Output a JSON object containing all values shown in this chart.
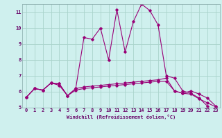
{
  "xlabel": "Windchill (Refroidissement éolien,°C)",
  "bg_color": "#cff0ee",
  "grid_color": "#aad4cc",
  "line_color": "#990077",
  "xlim": [
    -0.5,
    23.5
  ],
  "ylim": [
    5,
    11.5
  ],
  "yticks": [
    5,
    6,
    7,
    8,
    9,
    10,
    11
  ],
  "xticks": [
    0,
    1,
    2,
    3,
    4,
    5,
    6,
    7,
    8,
    9,
    10,
    11,
    12,
    13,
    14,
    15,
    16,
    17,
    18,
    19,
    20,
    21,
    22,
    23
  ],
  "line1_x": [
    0,
    1,
    2,
    3,
    4,
    5,
    6,
    7,
    8,
    9,
    10,
    11,
    12,
    13,
    14,
    15,
    16,
    17,
    18,
    19,
    20,
    21,
    22
  ],
  "line1_y": [
    5.65,
    6.2,
    6.1,
    6.55,
    6.5,
    5.75,
    6.2,
    9.4,
    9.3,
    10.0,
    8.0,
    11.15,
    8.5,
    10.4,
    11.5,
    11.1,
    10.2,
    7.0,
    6.85,
    6.05,
    5.9,
    5.6,
    5.1
  ],
  "line2_x": [
    0,
    1,
    2,
    3,
    4,
    5,
    6,
    7,
    8,
    9,
    10,
    11,
    12,
    13,
    14,
    15,
    16,
    17,
    18,
    19,
    20,
    21,
    22,
    23
  ],
  "line2_y": [
    5.65,
    6.2,
    6.1,
    6.55,
    6.5,
    5.75,
    6.2,
    6.3,
    6.35,
    6.4,
    6.45,
    6.5,
    6.55,
    6.6,
    6.65,
    6.7,
    6.75,
    6.85,
    6.05,
    5.9,
    6.05,
    5.85,
    5.6,
    5.1
  ],
  "line3_x": [
    0,
    1,
    2,
    3,
    4,
    5,
    6,
    7,
    8,
    9,
    10,
    11,
    12,
    13,
    14,
    15,
    16,
    17,
    18,
    19,
    20,
    21,
    22,
    23
  ],
  "line3_y": [
    5.65,
    6.2,
    6.1,
    6.55,
    6.4,
    5.75,
    6.1,
    6.2,
    6.25,
    6.3,
    6.35,
    6.4,
    6.45,
    6.5,
    6.55,
    6.6,
    6.65,
    6.65,
    6.05,
    5.9,
    5.85,
    5.55,
    5.3,
    5.05
  ]
}
